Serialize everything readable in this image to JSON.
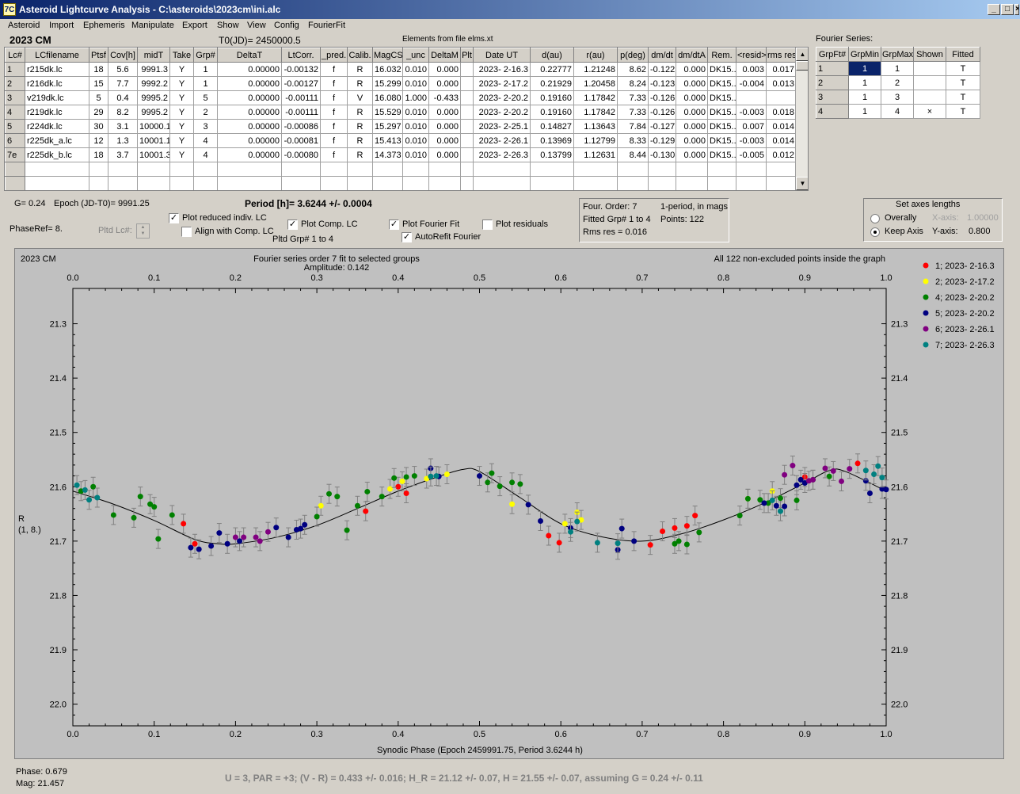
{
  "window": {
    "title": "Asteroid Lightcurve Analysis - C:\\asteroids\\2023cm\\ini.alc",
    "icon": "7C",
    "controls": [
      "_",
      "□",
      "×"
    ]
  },
  "menu": [
    "Asteroid",
    "Import",
    "Ephemeris",
    "Manipulate",
    "Export",
    "Show",
    "View",
    "Config",
    "FourierFit"
  ],
  "header": {
    "asteroid": "2023 CM",
    "t0": "T0(JD)= 2450000.5",
    "elements": "Elements from file elms.xt",
    "fourier_series_label": "Fourier Series:"
  },
  "lc_table": {
    "columns": [
      "Lc#",
      "LCfilename",
      "Ptsf",
      "Cov[h]",
      "midT",
      "Take",
      "Grp#",
      "DeltaT",
      "LtCorr.",
      "_pred.",
      "Calib.",
      "MagCS",
      "_unc",
      "DeltaM",
      "Plt",
      "Date UT",
      "d(au)",
      "r(au)",
      "p(deg)",
      "dm/dt",
      "dm/dtA",
      "Rem.",
      "<resid>",
      "rms res"
    ],
    "rows": [
      [
        "1",
        "r215dk.lc",
        "18",
        "5.6",
        "9991.3",
        "Y",
        "1",
        "0.00000",
        "-0.00132",
        "f",
        "R",
        "16.032",
        "0.010",
        "0.000",
        "",
        "2023- 2-16.3",
        "0.22777",
        "1.21248",
        "8.62",
        "-0.122",
        "0.000",
        "DK15...",
        "0.003",
        "0.017"
      ],
      [
        "2",
        "r216dk.lc",
        "15",
        "7.7",
        "9992.2",
        "Y",
        "1",
        "0.00000",
        "-0.00127",
        "f",
        "R",
        "15.299",
        "0.010",
        "0.000",
        "",
        "2023- 2-17.2",
        "0.21929",
        "1.20458",
        "8.24",
        "-0.123",
        "0.000",
        "DK15...",
        "-0.004",
        "0.013"
      ],
      [
        "3",
        "v219dk.lc",
        "5",
        "0.4",
        "9995.2",
        "Y",
        "5",
        "0.00000",
        "-0.00111",
        "f",
        "V",
        "16.080",
        "1.000",
        "-0.433",
        "",
        "2023- 2-20.2",
        "0.19160",
        "1.17842",
        "7.33",
        "-0.126",
        "0.000",
        "DK15...",
        "",
        ""
      ],
      [
        "4",
        "r219dk.lc",
        "29",
        "8.2",
        "9995.2",
        "Y",
        "2",
        "0.00000",
        "-0.00111",
        "f",
        "R",
        "15.529",
        "0.010",
        "0.000",
        "",
        "2023- 2-20.2",
        "0.19160",
        "1.17842",
        "7.33",
        "-0.126",
        "0.000",
        "DK15...",
        "-0.003",
        "0.018"
      ],
      [
        "5",
        "r224dk.lc",
        "30",
        "3.1",
        "10000.1",
        "Y",
        "3",
        "0.00000",
        "-0.00086",
        "f",
        "R",
        "15.297",
        "0.010",
        "0.000",
        "",
        "2023- 2-25.1",
        "0.14827",
        "1.13643",
        "7.84",
        "-0.127",
        "0.000",
        "DK15...",
        "0.007",
        "0.014"
      ],
      [
        "6",
        "r225dk_a.lc",
        "12",
        "1.3",
        "10001.1",
        "Y",
        "4",
        "0.00000",
        "-0.00081",
        "f",
        "R",
        "15.413",
        "0.010",
        "0.000",
        "",
        "2023- 2-26.1",
        "0.13969",
        "1.12799",
        "8.33",
        "-0.129",
        "0.000",
        "DK15...",
        "-0.003",
        "0.014"
      ],
      [
        "7e",
        "r225dk_b.lc",
        "18",
        "3.7",
        "10001.3",
        "Y",
        "4",
        "0.00000",
        "-0.00080",
        "f",
        "R",
        "14.373",
        "0.010",
        "0.000",
        "",
        "2023- 2-26.3",
        "0.13799",
        "1.12631",
        "8.44",
        "-0.130",
        "0.000",
        "DK15...",
        "-0.005",
        "0.012"
      ]
    ]
  },
  "fourier_table": {
    "columns": [
      "GrpFt#",
      "GrpMin",
      "GrpMax",
      "Shown",
      "Fitted"
    ],
    "rows": [
      [
        "1",
        "1",
        "1",
        "",
        "T"
      ],
      [
        "2",
        "1",
        "2",
        "",
        "T"
      ],
      [
        "3",
        "1",
        "3",
        "",
        "T"
      ],
      [
        "4",
        "1",
        "4",
        "×",
        "T"
      ]
    ]
  },
  "info": {
    "g": "G= 0.24",
    "epoch": "Epoch (JD-T0)= 9991.25",
    "period": "Period [h]= 3.6244 +/- 0.0004",
    "phase_ref": "PhaseRef= 8.",
    "pltd_lc": "Pltd Lc#:",
    "pltd_grp": "Pltd Grp#  1   to   4",
    "four_order": "Four. Order:  7",
    "period_mode": "1-period, in mags",
    "fitted_grp": "Fitted Grp# 1 to 4",
    "points": "Points: 122",
    "rms_res": "Rms res     = 0.016"
  },
  "checkboxes": {
    "plot_reduced": {
      "label": "Plot reduced indiv. LC",
      "checked": true
    },
    "align_comp": {
      "label": "Align with Comp. LC",
      "checked": false
    },
    "plot_comp": {
      "label": "Plot Comp. LC",
      "checked": true
    },
    "plot_fourier": {
      "label": "Plot Fourier Fit",
      "checked": true
    },
    "autorefit": {
      "label": "AutoRefit Fourier",
      "checked": true
    },
    "plot_residuals": {
      "label": "Plot residuals",
      "checked": false
    }
  },
  "axes_box": {
    "title": "Set axes lengths",
    "overally": "Overally",
    "keep_axis": "Keep Axis",
    "x_axis_label": "X-axis:",
    "x_axis_value": "1.00000",
    "y_axis_label": "Y-axis:",
    "y_axis_value": "0.800"
  },
  "status": {
    "phase": "Phase:  0.679",
    "mag": "Mag:    21.457",
    "footer": "U = 3, PAR = +3; (V - R) = 0.433 +/- 0.016; H_R = 21.12 +/- 0.07, H = 21.55 +/- 0.07, assuming G = 0.24 +/- 0.11"
  },
  "chart_data": {
    "type": "scatter",
    "title": "Fourier series order 7 fit to selected groups",
    "subtitle": "Amplitude: 0.142",
    "corner_label": "2023 CM",
    "note": "All 122 non-excluded points inside the graph",
    "xlabel": "Synodic Phase (Epoch 2459991.75, Period 3.6244 h)",
    "ylabel": "R",
    "ylabel2": "(1, 8.)",
    "xlim": [
      0,
      1
    ],
    "ylim": [
      21.3,
      22.0
    ],
    "y_inverted": true,
    "xticks": [
      "0.0",
      "0.1",
      "0.2",
      "0.3",
      "0.4",
      "0.5",
      "0.6",
      "0.7",
      "0.8",
      "0.9",
      "1.0"
    ],
    "yticks": [
      "21.3",
      "21.4",
      "21.5",
      "21.6",
      "21.7",
      "21.8",
      "21.9",
      "22.0"
    ],
    "fourier_curve": {
      "color": "#000000",
      "phase": [
        0.0,
        0.05,
        0.1,
        0.15,
        0.18,
        0.2,
        0.25,
        0.3,
        0.35,
        0.4,
        0.45,
        0.48,
        0.5,
        0.55,
        0.6,
        0.65,
        0.7,
        0.75,
        0.8,
        0.85,
        0.9,
        0.93,
        0.95,
        1.0
      ],
      "mag": [
        21.608,
        21.632,
        21.662,
        21.697,
        21.705,
        21.705,
        21.693,
        21.671,
        21.64,
        21.608,
        21.581,
        21.568,
        21.572,
        21.62,
        21.668,
        21.692,
        21.7,
        21.686,
        21.661,
        21.63,
        21.593,
        21.57,
        21.572,
        21.608
      ]
    },
    "series": [
      {
        "name": "1; 2023- 2-16.3",
        "color": "#ff0000",
        "x": [
          0.136,
          0.15,
          0.36,
          0.4,
          0.41,
          0.585,
          0.598,
          0.71,
          0.725,
          0.74,
          0.755,
          0.765,
          0.9,
          0.965
        ],
        "y": [
          21.668,
          21.705,
          21.645,
          21.6,
          21.612,
          21.69,
          21.703,
          21.707,
          21.682,
          21.676,
          21.672,
          21.653,
          21.582,
          21.557
        ]
      },
      {
        "name": "2; 2023- 2-17.2",
        "color": "#ffff00",
        "x": [
          0.305,
          0.39,
          0.405,
          0.435,
          0.46,
          0.54,
          0.605,
          0.62,
          0.625,
          0.83,
          0.86
        ],
        "y": [
          21.635,
          21.604,
          21.59,
          21.585,
          21.577,
          21.632,
          21.668,
          21.647,
          21.661,
          21.622,
          21.608
        ]
      },
      {
        "name": "4; 2023- 2-20.2",
        "color": "#008000",
        "x": [
          0.01,
          0.025,
          0.05,
          0.075,
          0.083,
          0.095,
          0.1,
          0.105,
          0.122,
          0.3,
          0.315,
          0.325,
          0.337,
          0.35,
          0.362,
          0.38,
          0.395,
          0.41,
          0.42,
          0.51,
          0.515,
          0.525,
          0.54,
          0.55,
          0.74,
          0.745,
          0.755,
          0.77,
          0.82,
          0.83,
          0.845,
          0.855,
          0.87,
          0.89,
          0.91,
          0.93
        ],
        "y": [
          21.608,
          21.6,
          21.652,
          21.657,
          21.618,
          21.632,
          21.637,
          21.696,
          21.652,
          21.655,
          21.613,
          21.618,
          21.68,
          21.635,
          21.609,
          21.618,
          21.584,
          21.582,
          21.58,
          21.592,
          21.575,
          21.599,
          21.592,
          21.595,
          21.705,
          21.7,
          21.706,
          21.684,
          21.653,
          21.622,
          21.624,
          21.63,
          21.621,
          21.625,
          21.587,
          21.581
        ]
      },
      {
        "name": "5; 2023- 2-20.2",
        "color": "#000080",
        "x": [
          0.145,
          0.155,
          0.17,
          0.18,
          0.19,
          0.205,
          0.25,
          0.265,
          0.275,
          0.28,
          0.285,
          0.44,
          0.45,
          0.5,
          0.56,
          0.575,
          0.612,
          0.67,
          0.675,
          0.69,
          0.85,
          0.865,
          0.875,
          0.89,
          0.895,
          0.9,
          0.975,
          0.98,
          0.995,
          1.0
        ],
        "y": [
          21.712,
          21.715,
          21.709,
          21.685,
          21.705,
          21.7,
          21.675,
          21.693,
          21.679,
          21.677,
          21.67,
          21.566,
          21.581,
          21.58,
          21.633,
          21.663,
          21.676,
          21.716,
          21.677,
          21.7,
          21.63,
          21.635,
          21.636,
          21.597,
          21.587,
          21.593,
          21.589,
          21.612,
          21.604,
          21.605
        ]
      },
      {
        "name": "6; 2023- 2-26.1",
        "color": "#800080",
        "x": [
          0.2,
          0.21,
          0.225,
          0.23,
          0.24,
          0.875,
          0.885,
          0.905,
          0.91,
          0.925,
          0.935,
          0.945,
          0.955
        ],
        "y": [
          21.693,
          21.693,
          21.693,
          21.7,
          21.683,
          21.578,
          21.561,
          21.589,
          21.587,
          21.566,
          21.571,
          21.59,
          21.567
        ]
      },
      {
        "name": "7; 2023- 2-26.3",
        "color": "#008080",
        "x": [
          0.005,
          0.015,
          0.02,
          0.03,
          0.44,
          0.447,
          0.612,
          0.62,
          0.645,
          0.67,
          0.86,
          0.87,
          0.975,
          0.985,
          0.99,
          0.995
        ],
        "y": [
          21.597,
          21.606,
          21.624,
          21.62,
          21.581,
          21.58,
          21.683,
          21.664,
          21.703,
          21.704,
          21.625,
          21.645,
          21.57,
          21.577,
          21.562,
          21.583
        ]
      }
    ],
    "legend_position": "right"
  }
}
